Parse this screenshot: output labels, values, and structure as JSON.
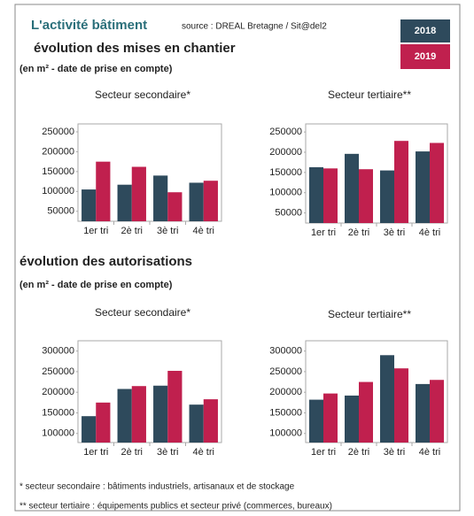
{
  "header": {
    "title": "L'activité bâtiment",
    "source": "source : DREAL Bretagne / Sit@del2"
  },
  "sections": [
    {
      "title": "évolution des mises en chantier",
      "unit": "(en m² - date de prise en compte)"
    },
    {
      "title": "évolution des autorisations",
      "unit": "(en m² - date de prise en compte)"
    }
  ],
  "chart_data": [
    {
      "type": "bar",
      "title": "Secteur secondaire*",
      "categories": [
        "1er tri",
        "2è tri",
        "3è tri",
        "4è tri"
      ],
      "series": [
        {
          "name": "2018",
          "color": "#2e4a5c",
          "values": [
            105000,
            117000,
            140000,
            122000
          ]
        },
        {
          "name": "2019",
          "color": "#c0204e",
          "values": [
            175000,
            162000,
            98000,
            127000
          ]
        }
      ],
      "ylim": [
        25000,
        270000
      ],
      "yticks": [
        50000,
        100000,
        150000,
        200000,
        250000
      ]
    },
    {
      "type": "bar",
      "title": "Secteur tertiaire**",
      "categories": [
        "1er tri",
        "2è tri",
        "3è tri",
        "4è tri"
      ],
      "series": [
        {
          "name": "2018",
          "color": "#2e4a5c",
          "values": [
            163000,
            196000,
            155000,
            202000
          ]
        },
        {
          "name": "2019",
          "color": "#c0204e",
          "values": [
            160000,
            158000,
            228000,
            223000
          ]
        }
      ],
      "ylim": [
        25000,
        270000
      ],
      "yticks": [
        50000,
        100000,
        150000,
        200000,
        250000
      ]
    },
    {
      "type": "bar",
      "title": "Secteur secondaire*",
      "categories": [
        "1er tri",
        "2è tri",
        "3è tri",
        "4è tri"
      ],
      "series": [
        {
          "name": "2018",
          "color": "#2e4a5c",
          "values": [
            142000,
            208000,
            216000,
            170000
          ]
        },
        {
          "name": "2019",
          "color": "#c0204e",
          "values": [
            175000,
            215000,
            252000,
            183000
          ]
        }
      ],
      "ylim": [
        78000,
        325000
      ],
      "yticks": [
        100000,
        150000,
        200000,
        250000,
        300000
      ]
    },
    {
      "type": "bar",
      "title": "Secteur tertiaire**",
      "categories": [
        "1er tri",
        "2è tri",
        "3è tri",
        "4è tri"
      ],
      "series": [
        {
          "name": "2018",
          "color": "#2e4a5c",
          "values": [
            182000,
            192000,
            290000,
            220000
          ]
        },
        {
          "name": "2019",
          "color": "#c0204e",
          "values": [
            197000,
            225000,
            258000,
            230000
          ]
        }
      ],
      "ylim": [
        78000,
        325000
      ],
      "yticks": [
        100000,
        150000,
        200000,
        250000,
        300000
      ]
    }
  ],
  "footnotes": [
    "* secteur secondaire : bâtiments industriels, artisanaux et de stockage",
    "** secteur tertiaire : équipements publics et secteur privé (commerces, bureaux)"
  ]
}
